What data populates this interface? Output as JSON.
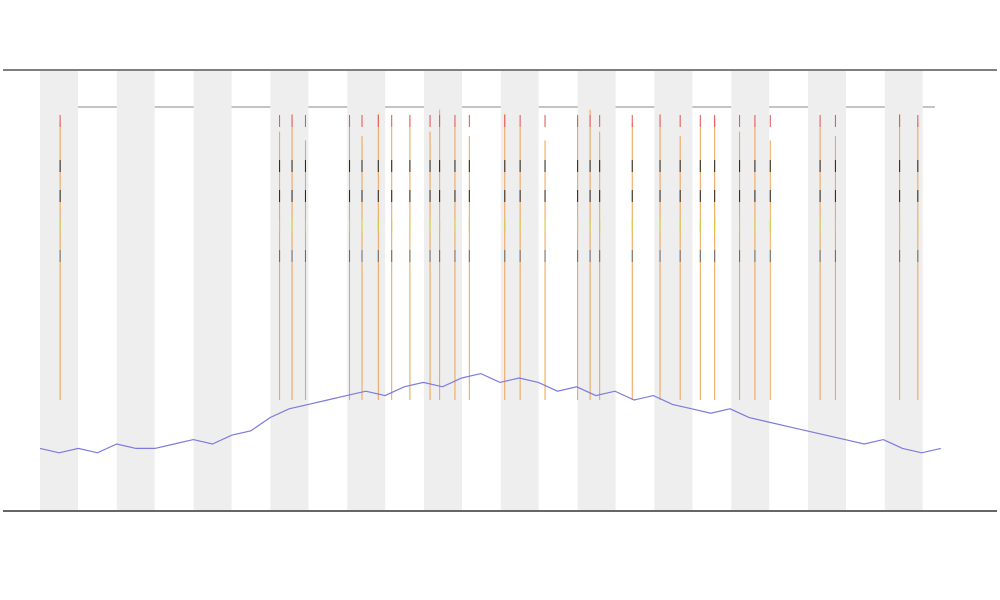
{
  "chart_data": {
    "type": "line",
    "xlim": [
      0,
      96
    ],
    "ylim": [
      0,
      100
    ],
    "series": [
      {
        "color": "#7b7bdf",
        "x": [
          0,
          2,
          4,
          6,
          8,
          10,
          12,
          14,
          16,
          18,
          20,
          22,
          24,
          26,
          28,
          30,
          32,
          34,
          36,
          38,
          40,
          42,
          44,
          46,
          48,
          50,
          52,
          54,
          56,
          58,
          60,
          62,
          64,
          66,
          68,
          70,
          72,
          74,
          76,
          78,
          80,
          82,
          84,
          86,
          88,
          90,
          92,
          94
        ],
        "values": [
          14,
          13,
          14,
          13,
          15,
          14,
          14,
          15,
          16,
          15,
          17,
          18,
          21,
          23,
          24,
          25,
          26,
          27,
          26,
          28,
          29,
          28,
          30,
          31,
          29,
          30,
          29,
          27,
          28,
          26,
          27,
          25,
          26,
          24,
          23,
          22,
          23,
          21,
          20,
          19,
          18,
          17,
          16,
          15,
          16,
          14,
          13,
          14
        ]
      }
    ],
    "spikes": {
      "color": "#f0a050",
      "x": [
        2.1,
        25,
        26.3,
        27.7,
        32.3,
        33.6,
        35.3,
        36.7,
        38.6,
        40.7,
        41.7,
        43.3,
        44.8,
        48.5,
        50.1,
        52.7,
        56.1,
        57.4,
        58.4,
        61.8,
        64.7,
        66.8,
        68.9,
        70.4,
        73,
        74.6,
        76.2,
        81.4,
        83,
        89.7,
        91.6
      ],
      "values": [
        88,
        86,
        90,
        84,
        88,
        85,
        90,
        87,
        89,
        86,
        91,
        88,
        85,
        90,
        87,
        84,
        89,
        91,
        86,
        88,
        90,
        85,
        87,
        89,
        86,
        88,
        84,
        87,
        85,
        90,
        88
      ]
    }
  }
}
